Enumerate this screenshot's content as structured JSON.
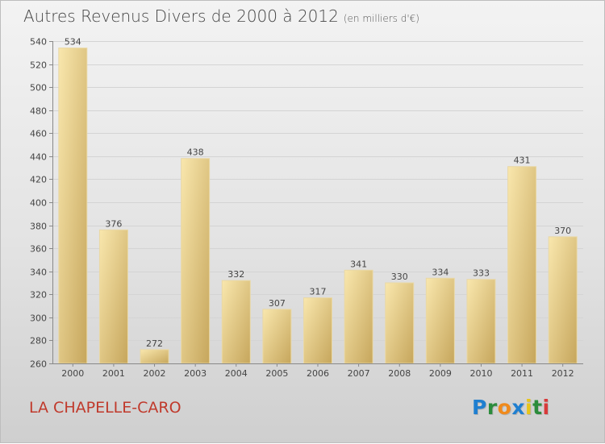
{
  "title": "Autres Revenus Divers de 2000 à 2012",
  "subtitle": "(en milliers d'€)",
  "commune": "LA CHAPELLE-CARO",
  "logo": {
    "text": "Proxiti",
    "letters": [
      "P",
      "r",
      "o",
      "x",
      "i",
      "t",
      "i"
    ],
    "colors": [
      "#1f7fd0",
      "#2c8c3c",
      "#f08a1c",
      "#1f7fd0",
      "#e8c51a",
      "#2c8c3c",
      "#d83a3a"
    ]
  },
  "colors": {
    "bar_light": "#f7e3a3",
    "bar_dark": "#c8a85f",
    "commune": "#c0392b"
  },
  "chart_data": {
    "type": "bar",
    "title": "Autres Revenus Divers de 2000 à 2012",
    "xlabel": "",
    "ylabel": "",
    "categories": [
      "2000",
      "2001",
      "2002",
      "2003",
      "2004",
      "2005",
      "2006",
      "2007",
      "2008",
      "2009",
      "2010",
      "2011",
      "2012"
    ],
    "values": [
      534,
      376,
      272,
      438,
      332,
      307,
      317,
      341,
      330,
      334,
      333,
      431,
      370
    ],
    "ylim": [
      260,
      540
    ],
    "yticks": [
      260,
      280,
      300,
      320,
      340,
      360,
      380,
      400,
      420,
      440,
      460,
      480,
      500,
      520,
      540
    ],
    "grid": true
  }
}
